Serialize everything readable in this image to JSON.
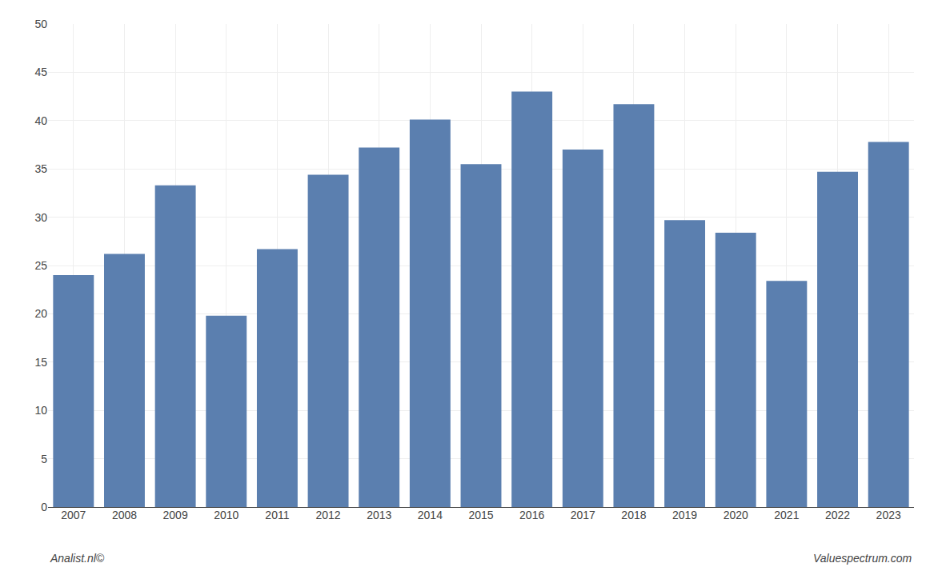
{
  "chart_data": {
    "type": "bar",
    "categories": [
      "2007",
      "2008",
      "2009",
      "2010",
      "2011",
      "2012",
      "2013",
      "2014",
      "2015",
      "2016",
      "2017",
      "2018",
      "2019",
      "2020",
      "2021",
      "2022",
      "2023"
    ],
    "values": [
      24.0,
      26.2,
      33.3,
      19.8,
      26.7,
      34.4,
      37.2,
      40.1,
      35.5,
      43.0,
      37.0,
      41.7,
      29.7,
      28.4,
      23.4,
      34.7,
      37.8
    ],
    "color": "#5b7faf",
    "ylim": [
      0,
      50
    ],
    "yticks": [
      0,
      5,
      10,
      15,
      20,
      25,
      30,
      35,
      40,
      45,
      50
    ],
    "grid": true,
    "annotations": [
      "Analist.nl©",
      "Valuespectrum.com"
    ]
  }
}
